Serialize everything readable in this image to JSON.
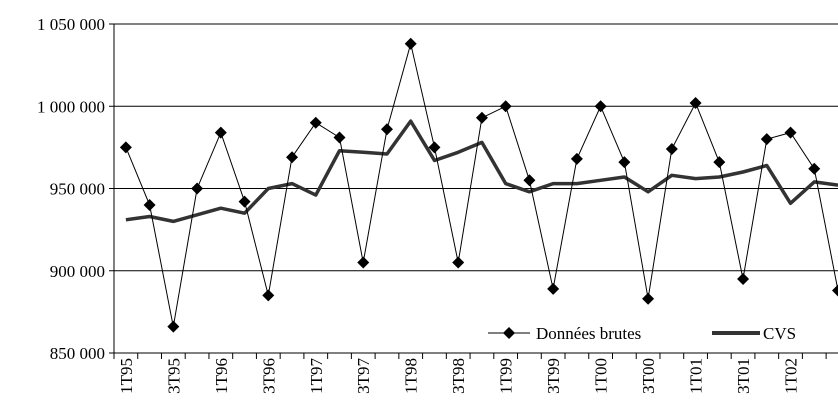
{
  "chart_data": {
    "type": "line",
    "title": "",
    "xlabel": "",
    "ylabel": "",
    "ylim": [
      850000,
      1050000
    ],
    "y_ticks": [
      850000,
      900000,
      950000,
      1000000,
      1050000
    ],
    "y_tick_labels": [
      "850 000",
      "900 000",
      "950 000",
      "1 000 000",
      "1 050 000"
    ],
    "grid": "horizontal",
    "legend_position": "bottom-right",
    "categories": [
      "1T95",
      "2T95",
      "3T95",
      "4T95",
      "1T96",
      "2T96",
      "3T96",
      "4T96",
      "1T97",
      "2T97",
      "3T97",
      "4T97",
      "1T98",
      "2T98",
      "3T98",
      "4T98",
      "1T99",
      "2T99",
      "3T99",
      "4T99",
      "1T00",
      "2T00",
      "3T00",
      "4T00",
      "1T01",
      "2T01",
      "3T01",
      "4T01",
      "1T02",
      "2T02",
      "3T02"
    ],
    "x_tick_labels": [
      "1T95",
      "3T95",
      "1T96",
      "3T96",
      "1T97",
      "3T97",
      "1T98",
      "3T98",
      "1T99",
      "3T99",
      "1T00",
      "3T00",
      "1T01",
      "3T01",
      "1T02"
    ],
    "series": [
      {
        "name": "Données brutes",
        "color": "#000000",
        "marker": "diamond",
        "values": [
          975000,
          940000,
          866000,
          950000,
          984000,
          942000,
          885000,
          969000,
          990000,
          981000,
          905000,
          986000,
          1038000,
          975000,
          905000,
          993000,
          1000000,
          955000,
          889000,
          968000,
          1000000,
          966000,
          883000,
          974000,
          1002000,
          966000,
          895000,
          980000,
          984000,
          962000,
          888000
        ]
      },
      {
        "name": "CVS",
        "color": "#333333",
        "marker": "none",
        "values": [
          931000,
          933000,
          930000,
          934000,
          938000,
          935000,
          950000,
          953000,
          946000,
          973000,
          972000,
          971000,
          991000,
          967000,
          972000,
          978000,
          953000,
          948000,
          953000,
          953000,
          955000,
          957000,
          948000,
          958000,
          956000,
          957000,
          960000,
          964000,
          941000,
          954000,
          952000
        ]
      }
    ]
  }
}
